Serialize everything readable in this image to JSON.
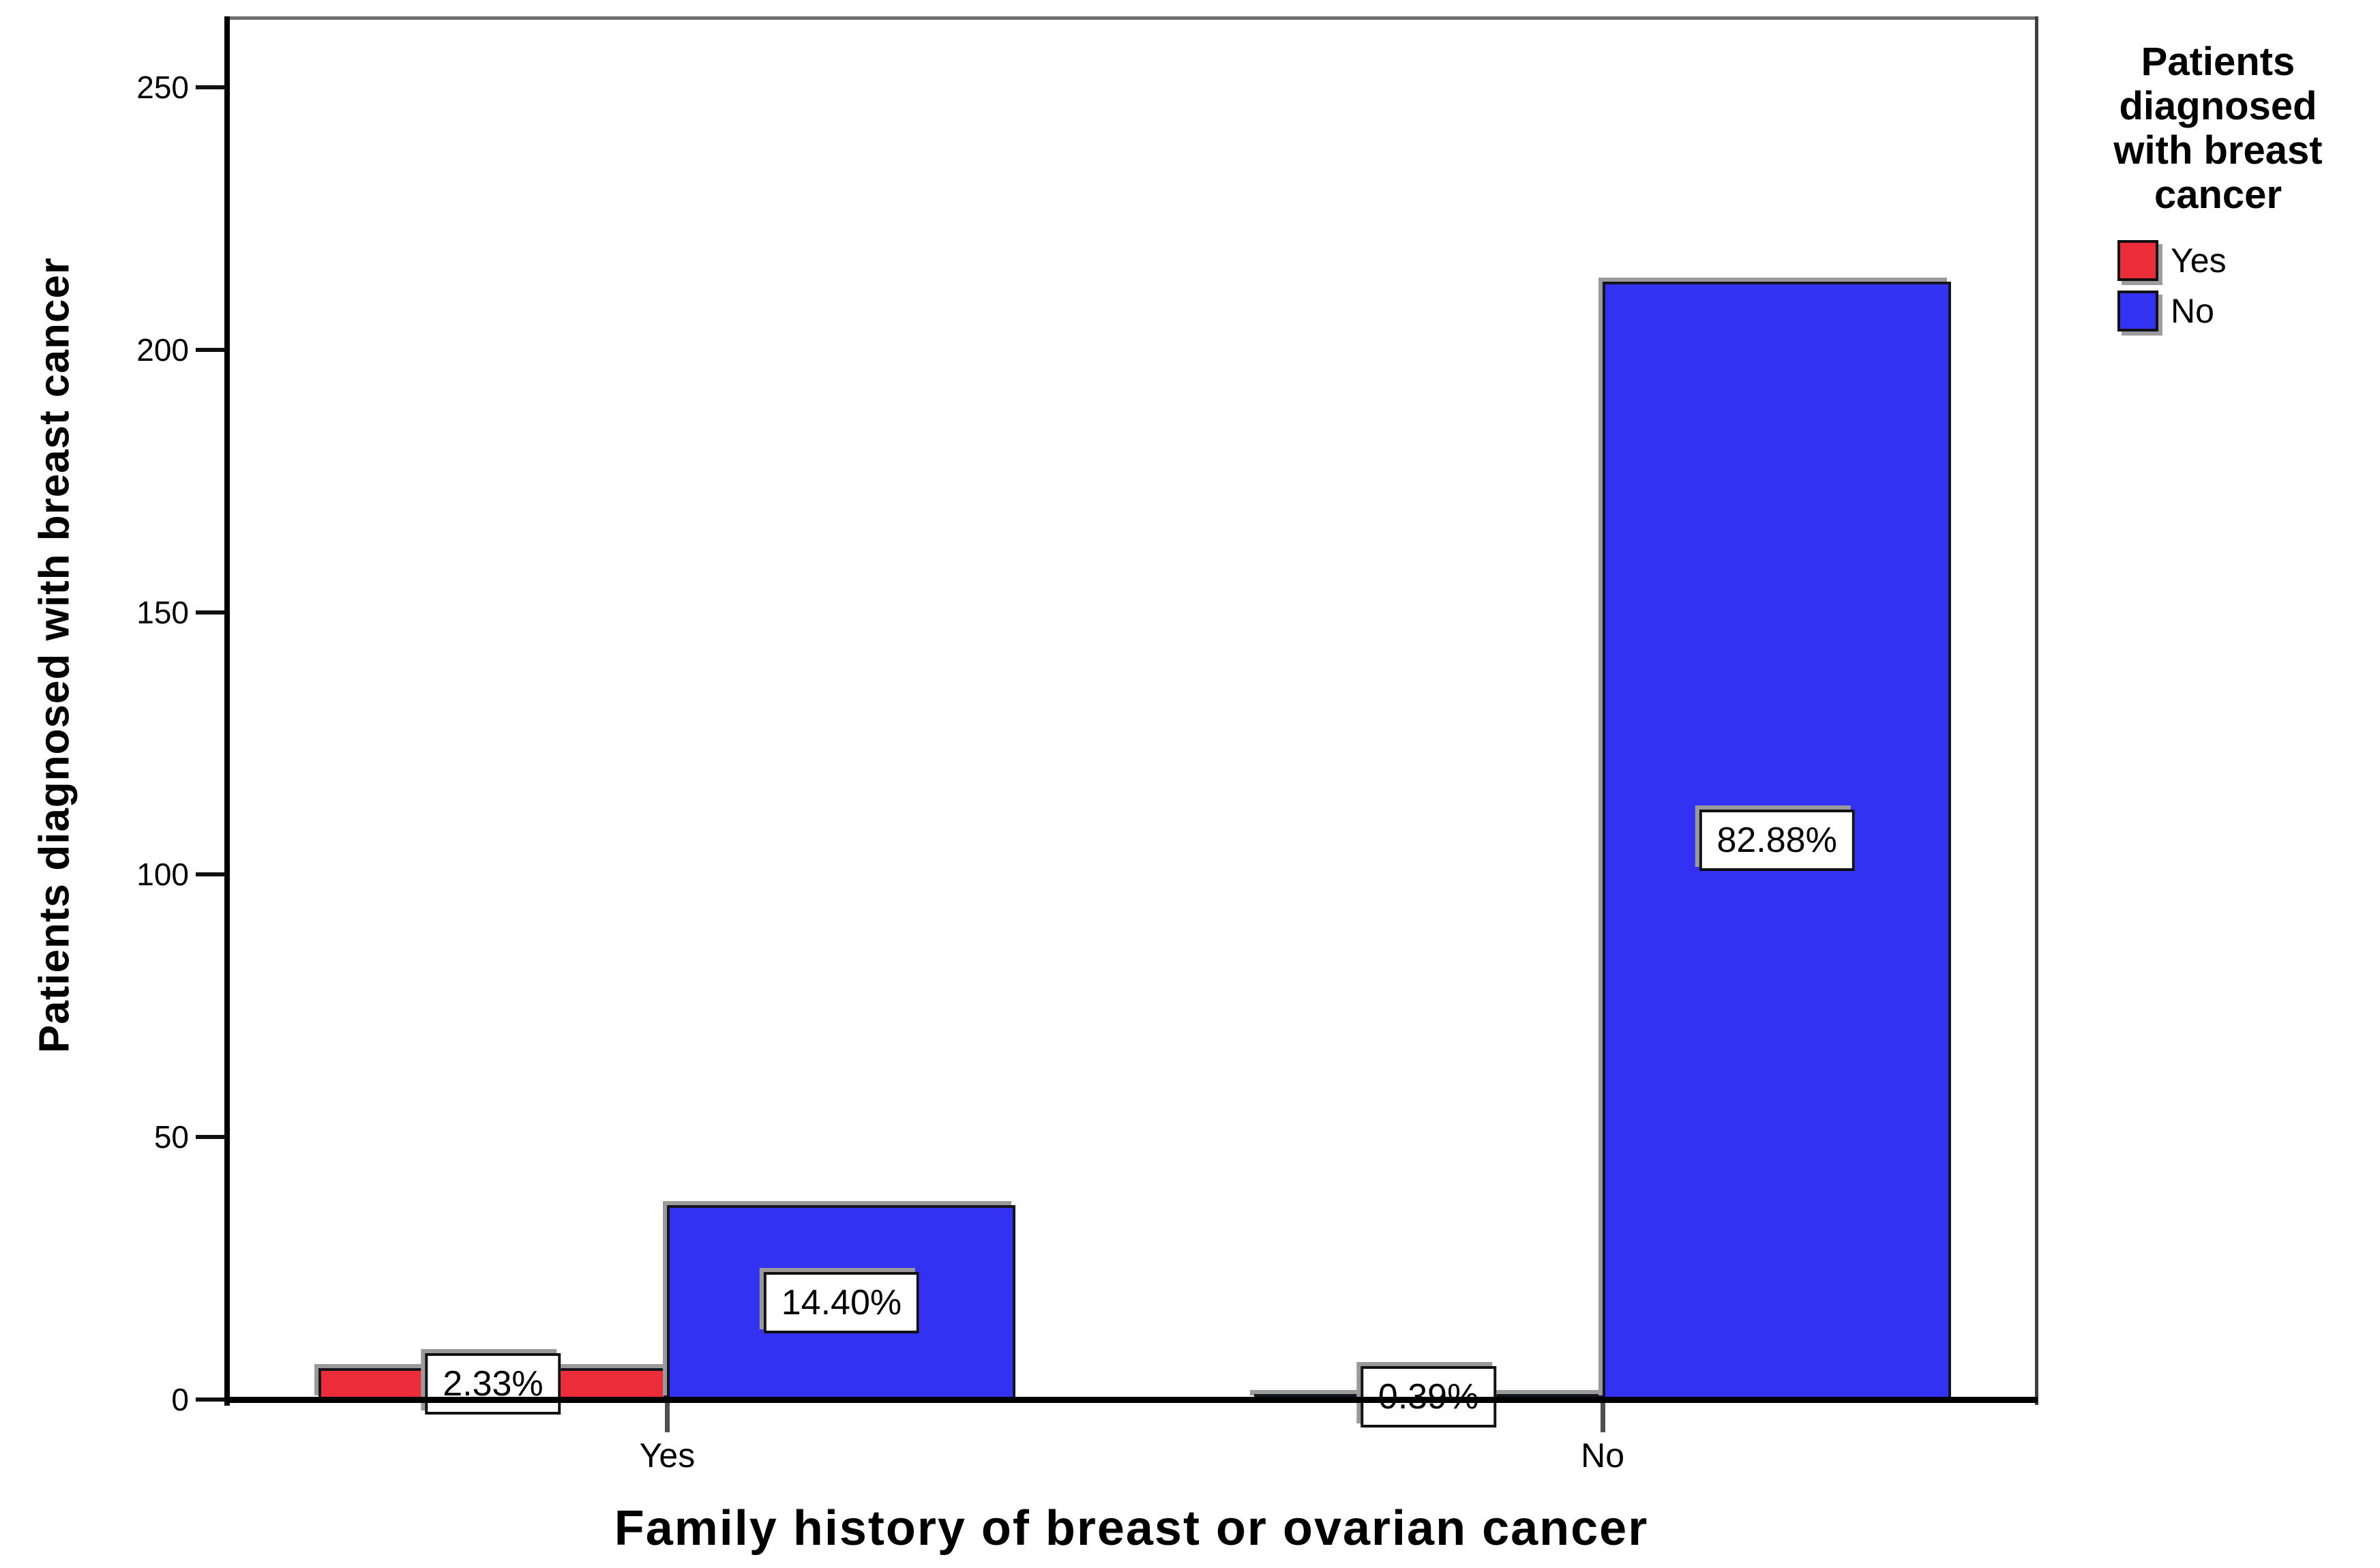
{
  "chart_data": {
    "type": "bar",
    "title": "",
    "xlabel": "Family history of breast or ovarian cancer",
    "ylabel": "Patients diagnosed with breast cancer",
    "categories": [
      "Yes",
      "No"
    ],
    "series": [
      {
        "name": "Yes",
        "color": "#ec2c39",
        "values": [
          6,
          1
        ],
        "percent_labels": [
          "2.33%",
          "0.39%"
        ]
      },
      {
        "name": "No",
        "color": "#3432f2",
        "values": [
          37,
          213
        ],
        "percent_labels": [
          "14.40%",
          "82.88%"
        ]
      }
    ],
    "value_labels_shown": "percent",
    "ylim": [
      0,
      263
    ],
    "yticks": [
      0,
      50,
      100,
      150,
      200,
      250
    ],
    "grid": false,
    "legend": {
      "position": "top-right",
      "title_lines": [
        "Patients",
        "diagnosed",
        "with breast",
        "cancer"
      ],
      "entries": [
        {
          "label": "Yes",
          "color": "#ec2c39"
        },
        {
          "label": "No",
          "color": "#3432f2"
        }
      ]
    }
  }
}
